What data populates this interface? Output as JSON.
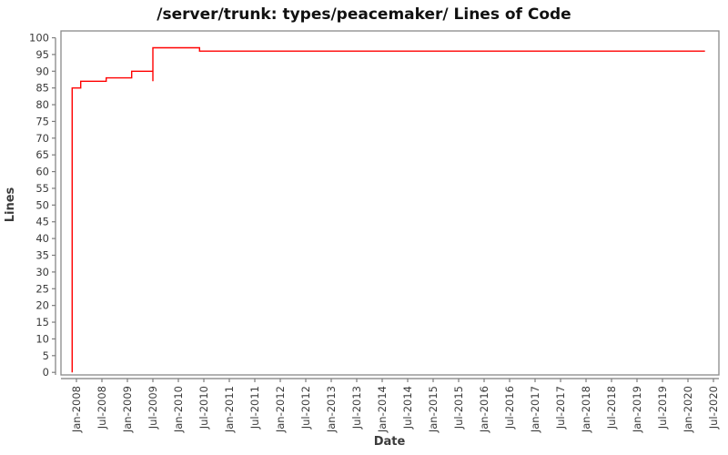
{
  "title": "/server/trunk: types/peacemaker/ Lines of Code",
  "colors": {
    "line": "#ff0000",
    "frame": "#8a8a8a",
    "axis": "#7d7d7d",
    "tick_text": "#3b3b3b",
    "title_text": "#111111",
    "background": "#ffffff"
  },
  "chart_data": {
    "type": "line",
    "subtype": "step-after",
    "title": "/server/trunk: types/peacemaker/ Lines of Code",
    "xlabel": "Date",
    "ylabel": "Lines",
    "ylim": [
      0,
      100
    ],
    "grid": false,
    "legend": "none",
    "y_ticks": [
      0,
      5,
      10,
      15,
      20,
      25,
      30,
      35,
      40,
      45,
      50,
      55,
      60,
      65,
      70,
      75,
      80,
      85,
      90,
      95,
      100
    ],
    "x_ticks": [
      "Jan-2008",
      "Jul-2008",
      "Jan-2009",
      "Jul-2009",
      "Jan-2010",
      "Jul-2010",
      "Jan-2011",
      "Jul-2011",
      "Jan-2012",
      "Jul-2012",
      "Jan-2013",
      "Jul-2013",
      "Jan-2014",
      "Jul-2014",
      "Jan-2015",
      "Jul-2015",
      "Jan-2016",
      "Jul-2016",
      "Jan-2017",
      "Jul-2017",
      "Jan-2018",
      "Jul-2018",
      "Jan-2019",
      "Jul-2019",
      "Jan-2020",
      "Jul-2020"
    ],
    "x_tick_rotation": -90,
    "x_epoch": "2008-01",
    "series": [
      {
        "name": "Lines of Code",
        "color": "#ff0000",
        "points": [
          [
            "2007-12",
            0
          ],
          [
            "2007-12",
            85
          ],
          [
            "2008-02",
            87
          ],
          [
            "2008-08",
            88
          ],
          [
            "2009-02",
            90
          ],
          [
            "2009-07",
            87
          ],
          [
            "2009-07",
            97
          ],
          [
            "2010-06",
            96
          ],
          [
            "2020-05",
            96
          ]
        ]
      }
    ]
  }
}
